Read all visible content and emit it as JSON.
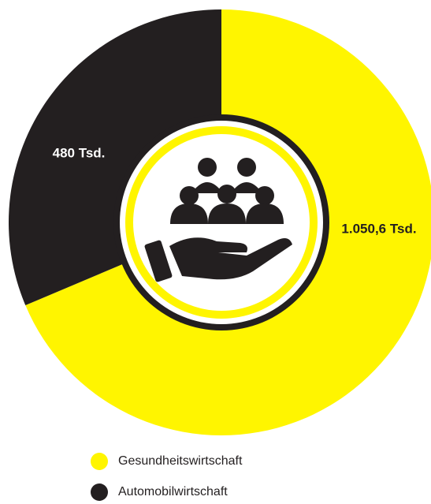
{
  "chart_data": {
    "type": "pie",
    "categories": [
      "Gesundheitswirtschaft",
      "Automobilwirtschaft"
    ],
    "series": [
      {
        "values": [
          1050.6,
          480
        ],
        "value_labels": [
          "1.050,6 Tsd.",
          "480 Tsd."
        ],
        "colors": [
          "#fff500",
          "#231f20"
        ]
      }
    ],
    "legend": "bottom"
  }
}
